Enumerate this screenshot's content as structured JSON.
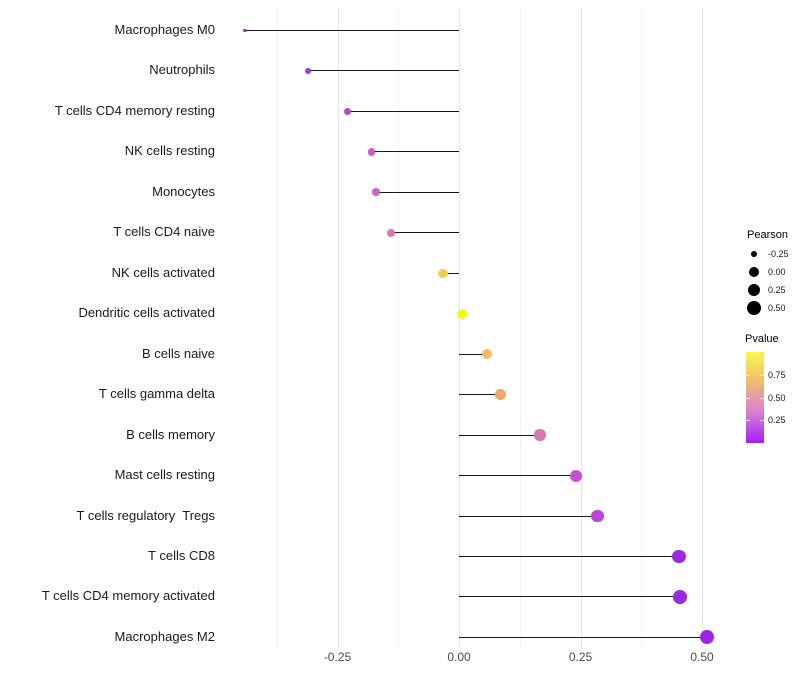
{
  "chart_data": {
    "type": "scatter",
    "variant": "lollipop",
    "title": "",
    "xlabel": "",
    "ylabel": "",
    "xlim": [
      -0.47,
      0.56
    ],
    "grid": "vertical-only",
    "x_ticks": [
      {
        "value": -0.25,
        "label": "-0.25"
      },
      {
        "value": 0.0,
        "label": "0.00"
      },
      {
        "value": 0.25,
        "label": "0.25"
      },
      {
        "value": 0.5,
        "label": "0.50"
      }
    ],
    "x_minor_ticks": [
      -0.375,
      -0.125,
      0.125,
      0.375
    ],
    "points": [
      {
        "label": "Macrophages M0",
        "pearson": -0.44,
        "pvalue_est": 0.1,
        "color": "#9035D0"
      },
      {
        "label": "Neutrophils",
        "pearson": -0.31,
        "pvalue_est": 0.16,
        "color": "#A338DA"
      },
      {
        "label": "T cells CD4 memory resting",
        "pearson": -0.23,
        "pvalue_est": 0.28,
        "color": "#B747D1"
      },
      {
        "label": "NK cells resting",
        "pearson": -0.18,
        "pvalue_est": 0.38,
        "color": "#C75EC4"
      },
      {
        "label": "Monocytes",
        "pearson": -0.17,
        "pvalue_est": 0.4,
        "color": "#CA64BD"
      },
      {
        "label": "T cells CD4 naive",
        "pearson": -0.14,
        "pvalue_est": 0.48,
        "color": "#D779AC"
      },
      {
        "label": "NK cells activated",
        "pearson": -0.033,
        "pvalue_est": 0.82,
        "color": "#EFD04F"
      },
      {
        "label": "Dendritic cells activated",
        "pearson": 0.007,
        "pvalue_est": 0.97,
        "color": "#F8F616"
      },
      {
        "label": "B cells naive",
        "pearson": 0.058,
        "pvalue_est": 0.7,
        "color": "#F2BD60"
      },
      {
        "label": "T cells gamma delta",
        "pearson": 0.085,
        "pvalue_est": 0.64,
        "color": "#EDA96C"
      },
      {
        "label": "B cells memory",
        "pearson": 0.167,
        "pvalue_est": 0.47,
        "color": "#D977AF"
      },
      {
        "label": "Mast cells resting",
        "pearson": 0.241,
        "pvalue_est": 0.31,
        "color": "#C851D3"
      },
      {
        "label": "T cells regulatory  Tregs",
        "pearson": 0.285,
        "pvalue_est": 0.26,
        "color": "#BF43DB"
      },
      {
        "label": "T cells CD8",
        "pearson": 0.453,
        "pvalue_est": 0.07,
        "color": "#9C2BE0"
      },
      {
        "label": "T cells CD4 memory activated",
        "pearson": 0.455,
        "pvalue_est": 0.07,
        "color": "#9C2BE0"
      },
      {
        "label": "Macrophages M2",
        "pearson": 0.511,
        "pvalue_est": 0.04,
        "color": "#9D23E7"
      }
    ]
  },
  "legend": {
    "size": {
      "title": "Pearson",
      "entries": [
        {
          "label": "-0.25",
          "value": -0.25
        },
        {
          "label": "0.00",
          "value": 0.0
        },
        {
          "label": "0.25",
          "value": 0.25
        },
        {
          "label": "0.50",
          "value": 0.5
        }
      ]
    },
    "color": {
      "title": "Pvalue",
      "tick_labels": [
        "0.75",
        "0.50",
        "0.25"
      ],
      "tick_values": [
        0.75,
        0.5,
        0.25
      ],
      "range": [
        0,
        1
      ],
      "gradient_stops_top_to_bottom": [
        "#F9F64B",
        "#F5D95F",
        "#F0B96E",
        "#E59BA8",
        "#D77FD0",
        "#BC4FEA",
        "#A81EF5"
      ]
    }
  },
  "colors": {
    "background": "#ffffff",
    "stick_line": "#1a1a1a",
    "major_gridline": "#e6e6e6",
    "minor_gridline": "#f2f2f2",
    "axis_tick_text": "#4d4d4d",
    "category_text": "#1a1a1a",
    "legend_circle": "#000000"
  }
}
